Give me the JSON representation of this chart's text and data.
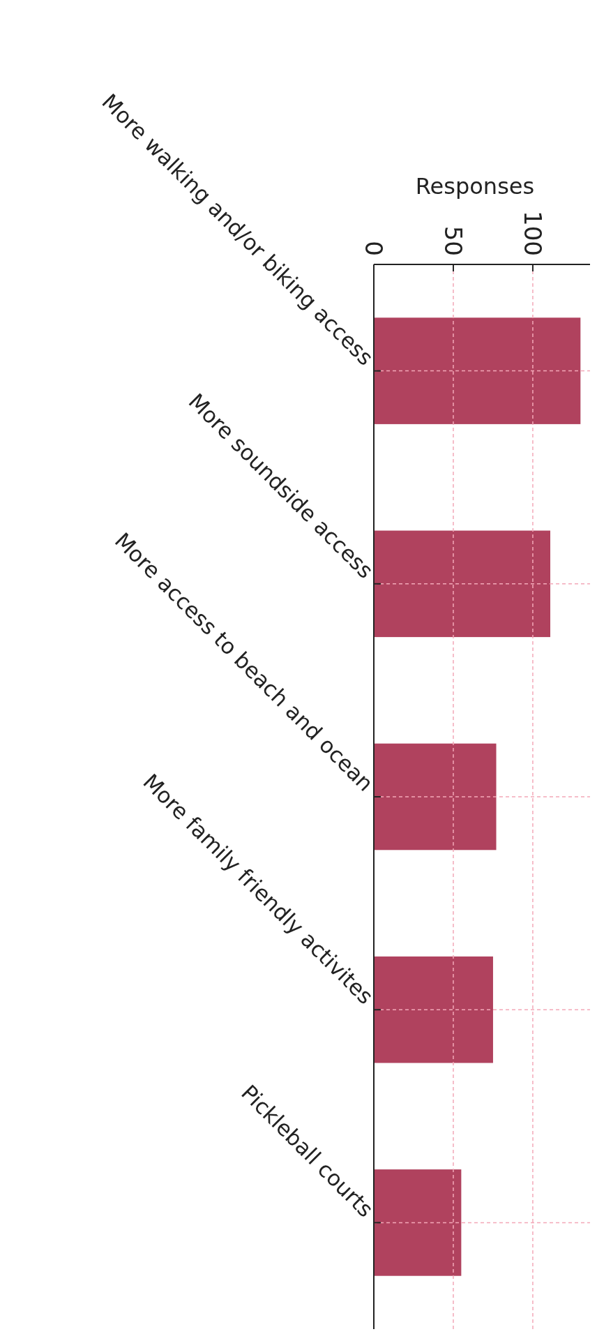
{
  "chart_data": {
    "type": "bar",
    "orientation": "horizontal",
    "xlabel": "Responses",
    "categories": [
      "More walking and/or biking access",
      "More soundside access",
      "More access to beach and ocean",
      "More family friendly activites",
      "Pickleball courts"
    ],
    "values": [
      130,
      111,
      77,
      75,
      55
    ],
    "color": "#b0425e",
    "xlim": [
      0,
      136
    ],
    "xticks": [
      0,
      50,
      100
    ],
    "grid": true
  }
}
